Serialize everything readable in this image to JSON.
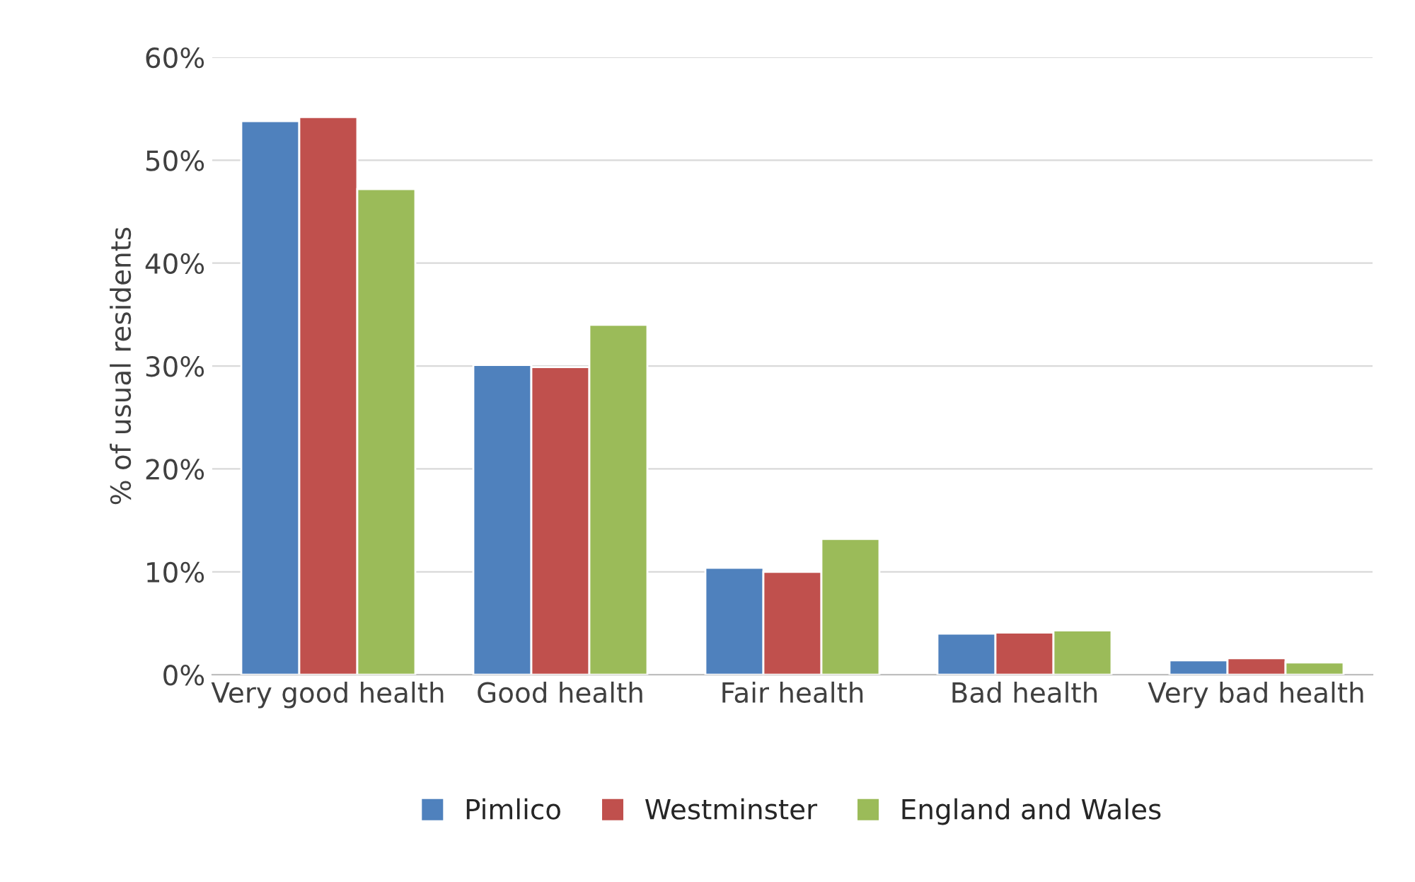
{
  "chart_data": {
    "type": "bar",
    "ylabel": "% of usual residents",
    "categories": [
      "Very good health",
      "Good health",
      "Fair health",
      "Bad health",
      "Very bad health"
    ],
    "series": [
      {
        "name": "Pimlico",
        "color": "#4f81bd",
        "values": [
          53.8,
          30.1,
          10.4,
          4.0,
          1.4
        ]
      },
      {
        "name": "Westminster",
        "color": "#c0504d",
        "values": [
          54.2,
          29.9,
          10.0,
          4.1,
          1.6
        ]
      },
      {
        "name": "England and Wales",
        "color": "#9bbb59",
        "values": [
          47.2,
          34.0,
          13.2,
          4.3,
          1.2
        ]
      }
    ],
    "ylim": [
      0,
      60
    ],
    "yticks": [
      {
        "value": 0,
        "label": "0%"
      },
      {
        "value": 10,
        "label": "10%"
      },
      {
        "value": 20,
        "label": "20%"
      },
      {
        "value": 30,
        "label": "30%"
      },
      {
        "value": 40,
        "label": "40%"
      },
      {
        "value": 50,
        "label": "50%"
      },
      {
        "value": 60,
        "label": "60%"
      }
    ],
    "grid": "y",
    "legend": "bottom"
  }
}
